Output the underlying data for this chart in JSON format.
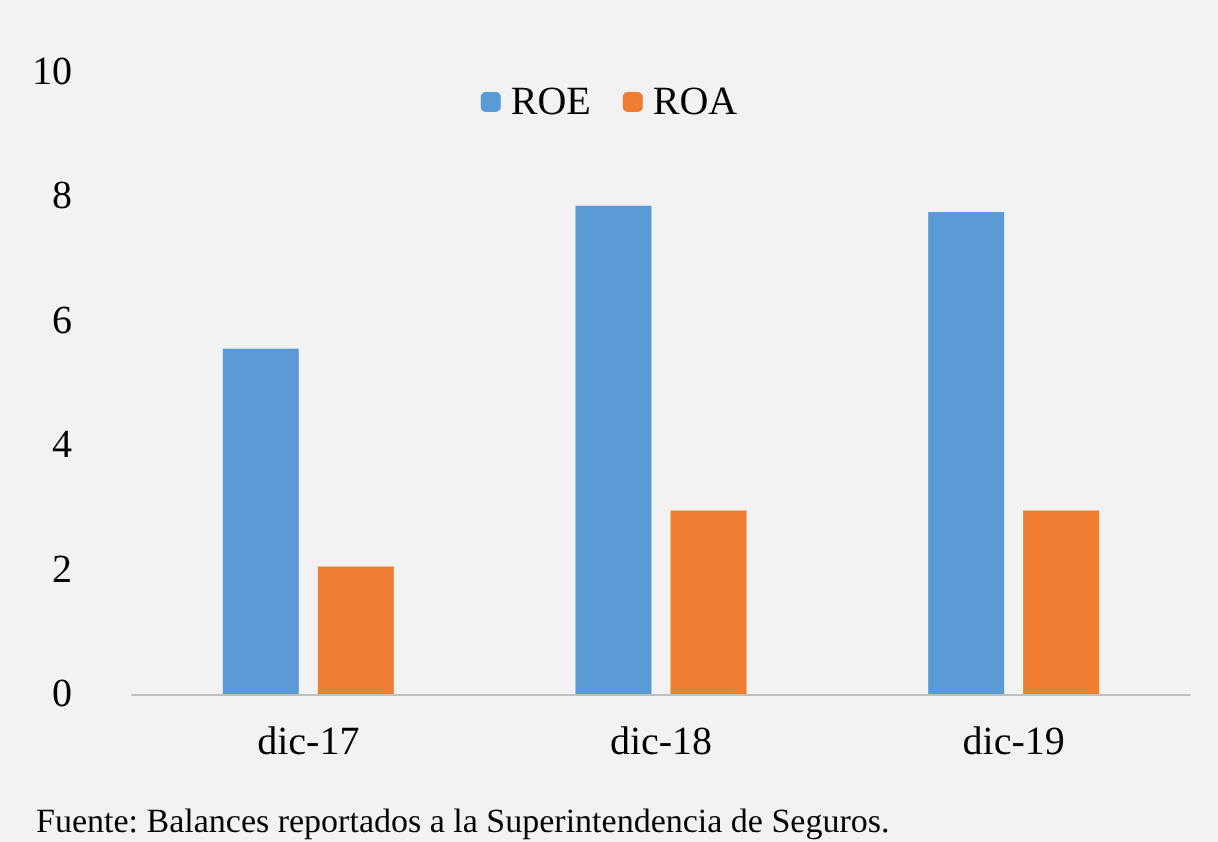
{
  "chart_data": {
    "type": "bar",
    "categories": [
      "dic-17",
      "dic-18",
      "dic-19"
    ],
    "series": [
      {
        "name": "ROE",
        "color": "#5b9bd5",
        "values": [
          5.55,
          7.85,
          7.75
        ]
      },
      {
        "name": "ROA",
        "color": "#ed7d31",
        "values": [
          2.05,
          2.95,
          2.95
        ]
      }
    ],
    "ylim": [
      0,
      10
    ],
    "yticks": [
      0,
      2,
      4,
      6,
      8,
      10
    ],
    "grid": false,
    "legend": "top",
    "annotations": [
      "Fuente: Balances reportados a la Superintendencia de Seguros."
    ]
  }
}
